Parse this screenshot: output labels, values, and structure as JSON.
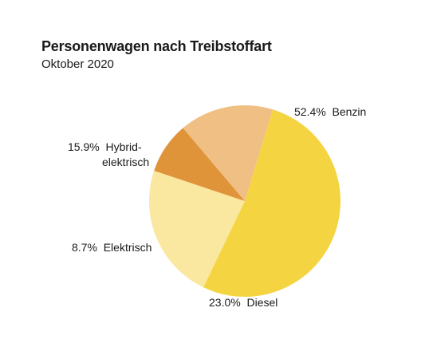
{
  "chart_data": {
    "type": "pie",
    "title": "Personenwagen nach Treibstoffart",
    "subtitle": "Oktober 2020",
    "slices": [
      {
        "name": "Benzin",
        "value": 52.4,
        "value_label": "52.4%",
        "color": "#f5d442"
      },
      {
        "name": "Diesel",
        "value": 23.0,
        "value_label": "23.0%",
        "color": "#fae7a0"
      },
      {
        "name": "Elektrisch",
        "value": 8.7,
        "value_label": "8.7%",
        "color": "#e0943a"
      },
      {
        "name": "Hybrid-elektrisch",
        "name_lines": [
          "Hybrid-",
          "elektrisch"
        ],
        "value": 15.9,
        "value_label": "15.9%",
        "color": "#efbf83"
      }
    ]
  }
}
